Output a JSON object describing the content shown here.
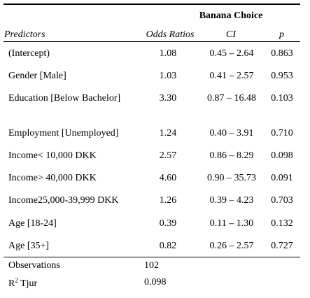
{
  "table": {
    "dv_title": "Banana Choice",
    "headers": {
      "predictors": "Predictors",
      "odds_ratios": "Odds Ratios",
      "ci": "CI",
      "p": "p"
    },
    "rows": [
      {
        "predictor": "(Intercept)",
        "or": "1.08",
        "ci": "0.45 – 2.64",
        "p": "0.863"
      },
      {
        "predictor": "Gender [Male]",
        "or": "1.03",
        "ci": "0.41 – 2.57",
        "p": "0.953"
      },
      {
        "predictor": "Education [Below Bachelor]",
        "or": "3.30",
        "ci": "0.87 – 16.48",
        "p": "0.103"
      },
      {
        "predictor": "Employment [Unemployed]",
        "or": "1.24",
        "ci": "0.40 – 3.91",
        "p": "0.710"
      },
      {
        "predictor": "Income< 10,000 DKK",
        "or": "2.57",
        "ci": "0.86 – 8.29",
        "p": "0.098"
      },
      {
        "predictor": "Income> 40,000 DKK",
        "or": "4.60",
        "ci": "0.90 – 35.73",
        "p": "0.091"
      },
      {
        "predictor": "Income25,000-39,999 DKK",
        "or": "1.26",
        "ci": "0.39 – 4.23",
        "p": "0.703"
      },
      {
        "predictor": "Age [18-24]",
        "or": "0.39",
        "ci": "0.11 – 1.30",
        "p": "0.132"
      },
      {
        "predictor": "Age [35+]",
        "or": "0.82",
        "ci": "0.26 – 2.57",
        "p": "0.727"
      }
    ],
    "footer": {
      "observations_label": "Observations",
      "observations_value": "102",
      "r2_label_r": "R",
      "r2_label_sup": "2",
      "r2_label_rest": " Tjur",
      "r2_value": "0.098"
    }
  }
}
